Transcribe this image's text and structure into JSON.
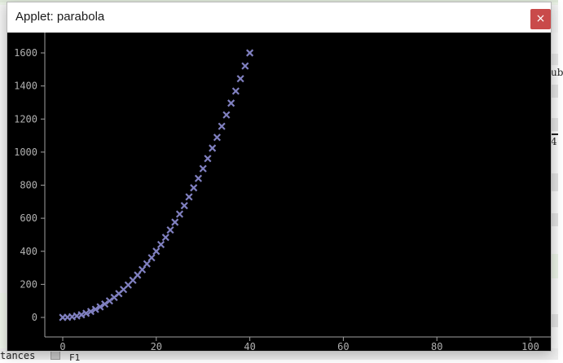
{
  "window": {
    "title": "Applet: parabola",
    "close_symbol": "×"
  },
  "background": {
    "right_text_1": "ub",
    "right_text_2": "4",
    "bottom_text": "tances",
    "bottom_text2": "F1"
  },
  "colors": {
    "plot_background": "#000000",
    "marker": "#8080c0",
    "axis": "#a0a0a0",
    "tick_label": "#b0b0b0",
    "close_button": "#c94a4a"
  },
  "chart_data": {
    "type": "scatter",
    "marker": "x",
    "xlim": [
      -5,
      105
    ],
    "ylim": [
      -80,
      1720
    ],
    "x_ticks": [
      0,
      20,
      40,
      60,
      80,
      100
    ],
    "y_ticks": [
      0,
      200,
      400,
      600,
      800,
      1000,
      1200,
      1400,
      1600
    ],
    "x_tick_labels": [
      "0",
      "20",
      "40",
      "60",
      "80",
      "100"
    ],
    "y_tick_labels": [
      "0",
      "200",
      "400",
      "600",
      "800",
      "1000",
      "1200",
      "1400",
      "1600"
    ],
    "points": [
      [
        0,
        0
      ],
      [
        1,
        1
      ],
      [
        2,
        4
      ],
      [
        3,
        9
      ],
      [
        4,
        16
      ],
      [
        5,
        25
      ],
      [
        6,
        36
      ],
      [
        7,
        49
      ],
      [
        8,
        64
      ],
      [
        9,
        81
      ],
      [
        10,
        100
      ],
      [
        11,
        121
      ],
      [
        12,
        144
      ],
      [
        13,
        169
      ],
      [
        14,
        196
      ],
      [
        15,
        225
      ],
      [
        16,
        256
      ],
      [
        17,
        289
      ],
      [
        18,
        324
      ],
      [
        19,
        361
      ],
      [
        20,
        400
      ],
      [
        21,
        441
      ],
      [
        22,
        484
      ],
      [
        23,
        529
      ],
      [
        24,
        576
      ],
      [
        25,
        625
      ],
      [
        26,
        676
      ],
      [
        27,
        729
      ],
      [
        28,
        784
      ],
      [
        29,
        841
      ],
      [
        30,
        900
      ],
      [
        31,
        961
      ],
      [
        32,
        1024
      ],
      [
        33,
        1089
      ],
      [
        34,
        1156
      ],
      [
        35,
        1225
      ],
      [
        36,
        1296
      ],
      [
        37,
        1369
      ],
      [
        38,
        1444
      ],
      [
        39,
        1521
      ],
      [
        40,
        1600
      ]
    ]
  }
}
